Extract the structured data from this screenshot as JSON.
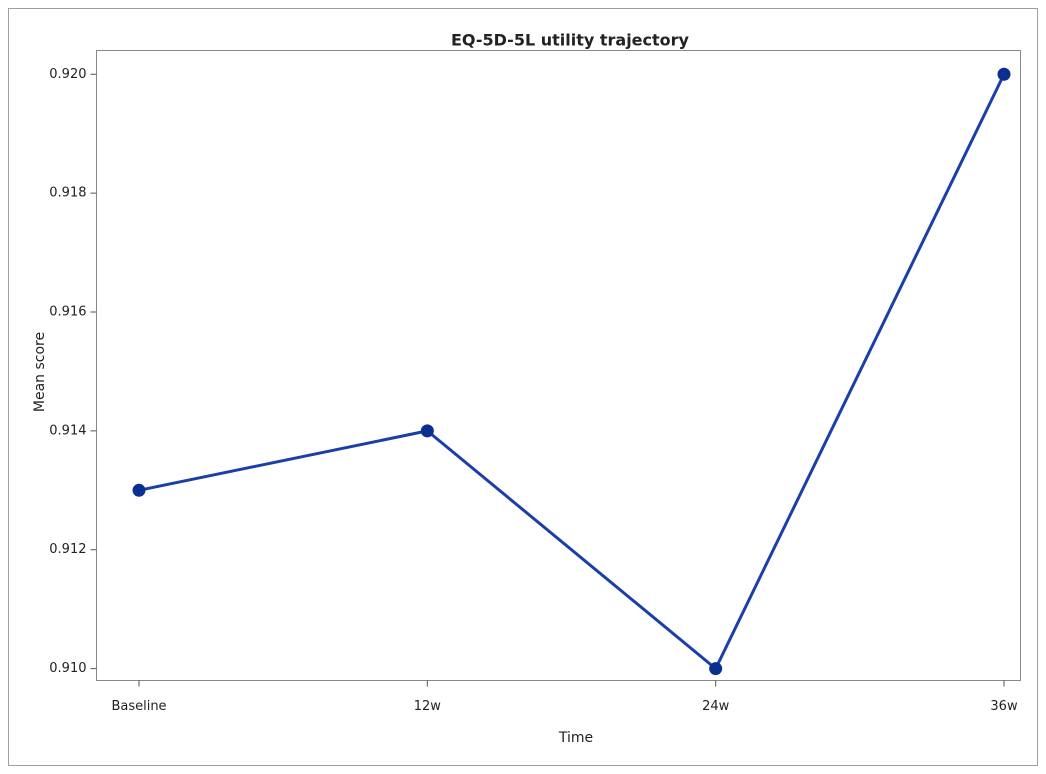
{
  "chart_data": {
    "type": "line",
    "title": "EQ-5D-5L utility trajectory",
    "x_label": "Time",
    "y_label": "Mean score",
    "categories": [
      "Baseline",
      "12w",
      "24w",
      "36w"
    ],
    "values": [
      0.913,
      0.914,
      0.91,
      0.92
    ],
    "color": "#1a3fa6",
    "marker_color": "#0a2f91",
    "ylim": [
      0.9098,
      0.9204
    ],
    "yticks": [
      {
        "value": 0.91,
        "label": "0.910"
      },
      {
        "value": 0.912,
        "label": "0.912"
      },
      {
        "value": 0.914,
        "label": "0.914"
      },
      {
        "value": 0.916,
        "label": "0.916"
      },
      {
        "value": 0.918,
        "label": "0.918"
      },
      {
        "value": 0.92,
        "label": "0.920"
      }
    ],
    "grid": false
  }
}
